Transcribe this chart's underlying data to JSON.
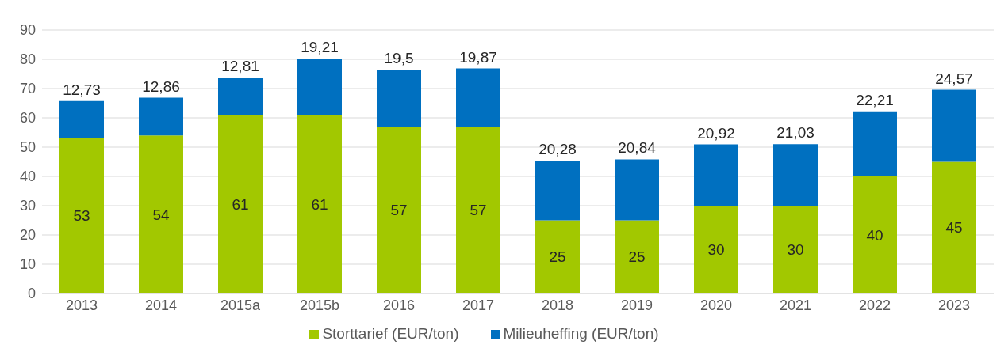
{
  "chart_data": {
    "type": "bar",
    "stacked": true,
    "categories": [
      "2013",
      "2014",
      "2015a",
      "2015b",
      "2016",
      "2017",
      "2018",
      "2019",
      "2020",
      "2021",
      "2022",
      "2023"
    ],
    "series": [
      {
        "name": "Storttarief (EUR/ton)",
        "color": "#a2c800",
        "values": [
          53,
          54,
          61,
          61,
          57,
          57,
          25,
          25,
          30,
          30,
          40,
          45
        ],
        "value_labels": [
          "53",
          "54",
          "61",
          "61",
          "57",
          "57",
          "25",
          "25",
          "30",
          "30",
          "40",
          "45"
        ]
      },
      {
        "name": "Milieuheffing (EUR/ton)",
        "color": "#0070c0",
        "values": [
          12.73,
          12.86,
          12.81,
          19.21,
          19.5,
          19.87,
          20.28,
          20.84,
          20.92,
          21.03,
          22.21,
          24.57
        ],
        "value_labels": [
          "12,73",
          "12,86",
          "12,81",
          "19,21",
          "19,5",
          "19,87",
          "20,28",
          "20,84",
          "20,92",
          "21,03",
          "22,21",
          "24,57"
        ]
      }
    ],
    "ylim": [
      0,
      90
    ],
    "yticks": [
      0,
      10,
      20,
      30,
      40,
      50,
      60,
      70,
      80,
      90
    ],
    "grid": "y",
    "legend": "bottom"
  }
}
